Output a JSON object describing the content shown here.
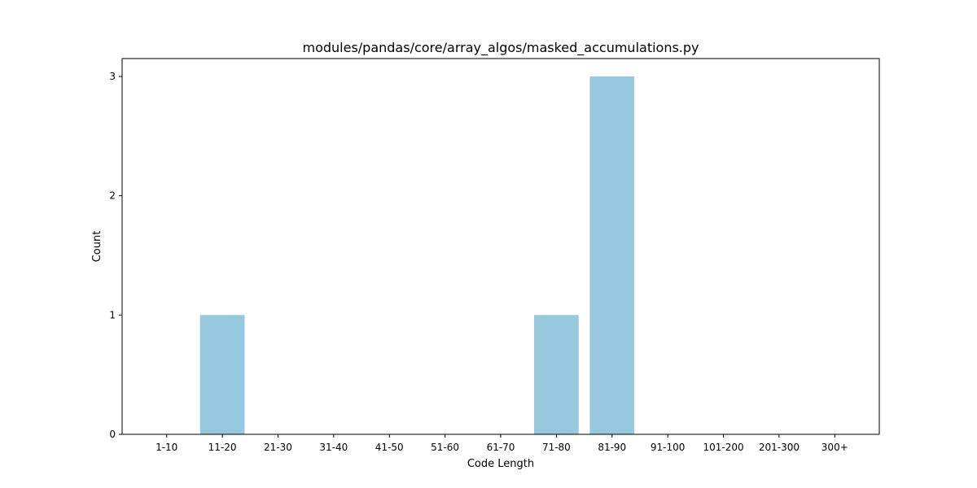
{
  "chart_data": {
    "type": "bar",
    "title": "modules/pandas/core/array_algos/masked_accumulations.py",
    "xlabel": "Code Length",
    "ylabel": "Count",
    "categories": [
      "1-10",
      "11-20",
      "21-30",
      "31-40",
      "41-50",
      "51-60",
      "61-70",
      "71-80",
      "81-90",
      "91-100",
      "101-200",
      "201-300",
      "300+"
    ],
    "values": [
      0,
      1,
      0,
      0,
      0,
      0,
      0,
      1,
      3,
      0,
      0,
      0,
      0
    ],
    "ylim": [
      0,
      3.15
    ],
    "yticks": [
      0,
      1,
      2,
      3
    ],
    "bar_color": "#96c9dd",
    "grid": false
  }
}
